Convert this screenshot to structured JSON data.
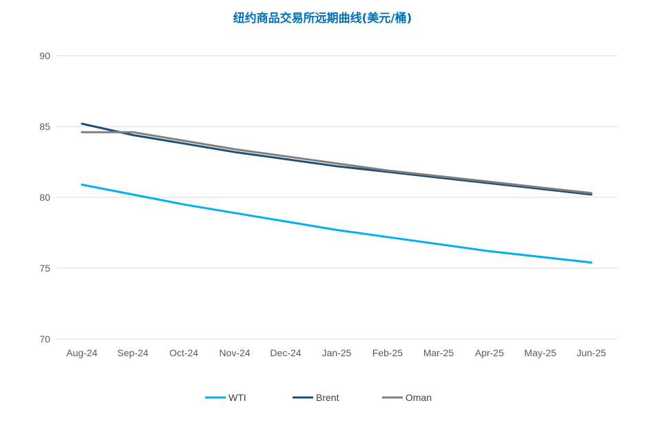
{
  "chart_data": {
    "type": "line",
    "title": "纽约商品交易所远期曲线(美元/桶)",
    "xlabel": "",
    "ylabel": "",
    "categories": [
      "Aug-24",
      "Sep-24",
      "Oct-24",
      "Nov-24",
      "Dec-24",
      "Jan-25",
      "Feb-25",
      "Mar-25",
      "Apr-25",
      "May-25",
      "Jun-25"
    ],
    "ylim": [
      70,
      90
    ],
    "yticks": [
      70,
      75,
      80,
      85,
      90
    ],
    "grid": true,
    "legend_position": "bottom",
    "series": [
      {
        "name": "WTI",
        "color": "#00b0f0",
        "values": [
          80.9,
          80.2,
          79.5,
          78.9,
          78.3,
          77.7,
          77.2,
          76.7,
          76.2,
          75.8,
          75.4
        ]
      },
      {
        "name": "Brent",
        "color": "#1f4e79",
        "values": [
          85.2,
          84.4,
          83.8,
          83.2,
          82.7,
          82.2,
          81.8,
          81.4,
          81.0,
          80.6,
          80.2
        ]
      },
      {
        "name": "Oman",
        "color": "#7f7f7f",
        "values": [
          84.6,
          84.6,
          84.0,
          83.4,
          82.9,
          82.4,
          81.9,
          81.5,
          81.1,
          80.7,
          80.3
        ]
      }
    ]
  }
}
